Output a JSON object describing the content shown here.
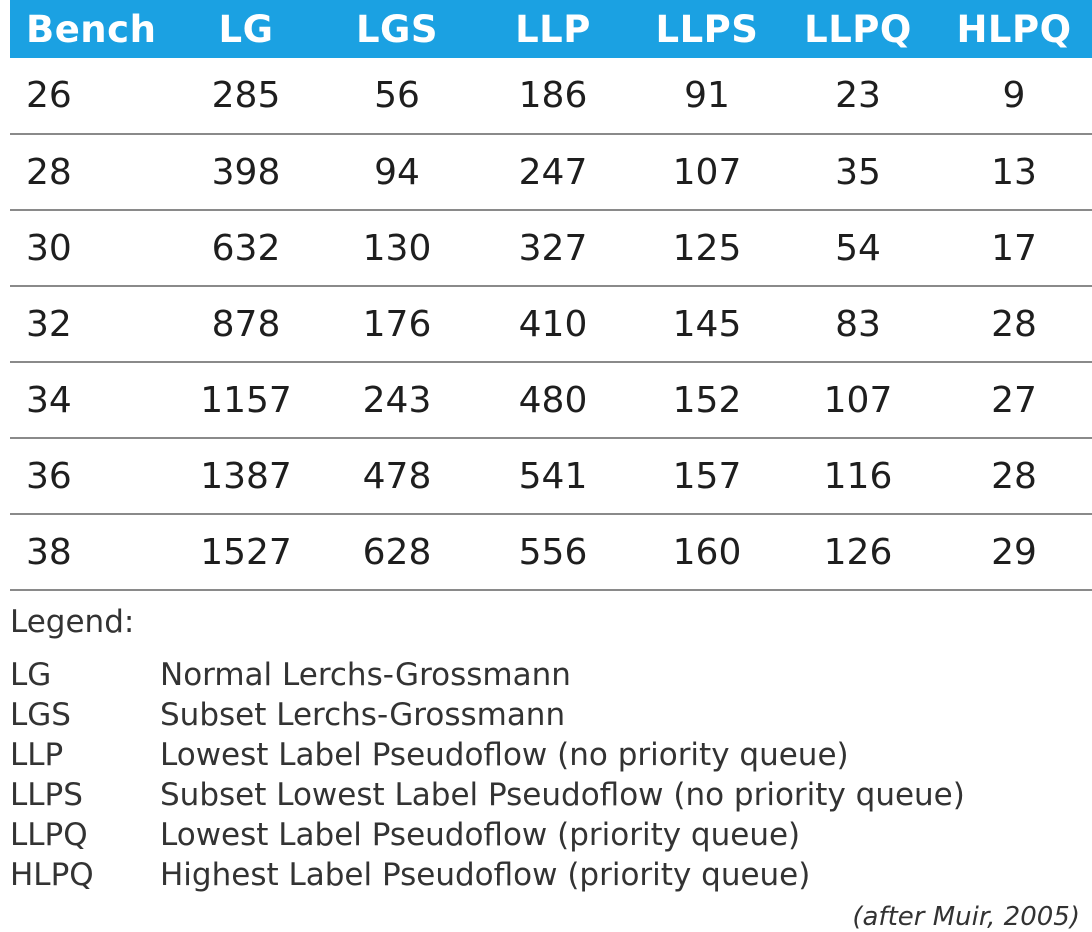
{
  "chart_data": {
    "type": "table",
    "columns": [
      "Bench",
      "LG",
      "LGS",
      "LLP",
      "LLPS",
      "LLPQ",
      "HLPQ"
    ],
    "rows": [
      [
        "26",
        "285",
        "56",
        "186",
        "91",
        "23",
        "9"
      ],
      [
        "28",
        "398",
        "94",
        "247",
        "107",
        "35",
        "13"
      ],
      [
        "30",
        "632",
        "130",
        "327",
        "125",
        "54",
        "17"
      ],
      [
        "32",
        "878",
        "176",
        "410",
        "145",
        "83",
        "28"
      ],
      [
        "34",
        "1157",
        "243",
        "480",
        "152",
        "107",
        "27"
      ],
      [
        "36",
        "1387",
        "478",
        "541",
        "157",
        "116",
        "28"
      ],
      [
        "38",
        "1527",
        "628",
        "556",
        "160",
        "126",
        "29"
      ]
    ],
    "header_color": "#1ba1e2"
  },
  "legend": {
    "title": "Legend:",
    "items": [
      {
        "abbr": "LG",
        "desc": "Normal Lerchs-Grossmann"
      },
      {
        "abbr": "LGS",
        "desc": "Subset Lerchs-Grossmann"
      },
      {
        "abbr": "LLP",
        "desc": "Lowest Label Pseudoflow (no priority queue)"
      },
      {
        "abbr": "LLPS",
        "desc": "Subset Lowest Label Pseudoflow (no priority queue)"
      },
      {
        "abbr": "LLPQ",
        "desc": "Lowest Label Pseudoflow (priority queue)"
      },
      {
        "abbr": "HLPQ",
        "desc": "Highest Label Pseudoflow (priority queue)"
      }
    ]
  },
  "source": "(after Muir, 2005)"
}
